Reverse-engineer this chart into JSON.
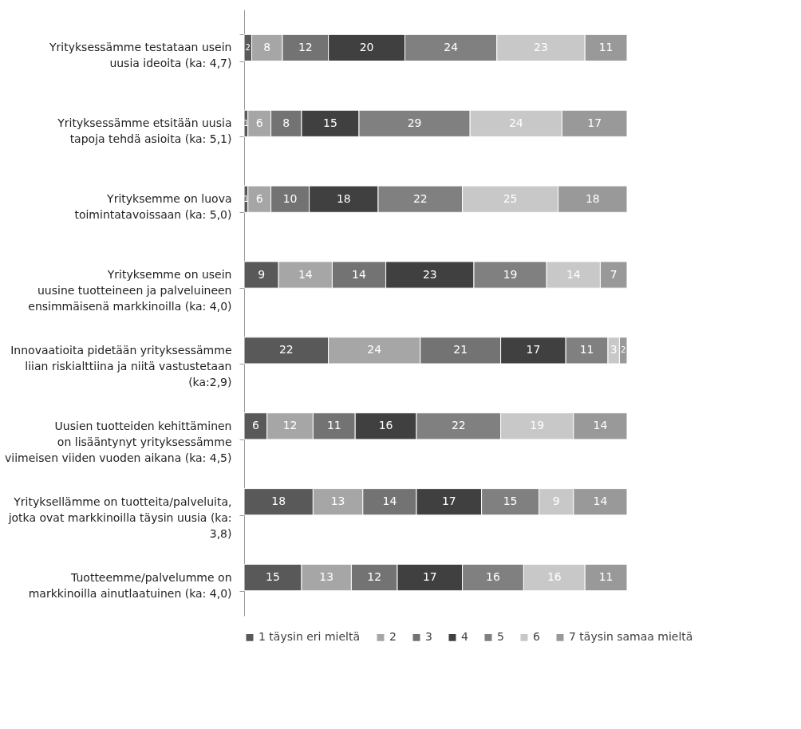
{
  "chart_data": {
    "type": "bar",
    "orientation": "horizontal",
    "stacked": true,
    "data_labels": true,
    "legend": "bottom",
    "grid": false,
    "tick_labels": "y",
    "xlim": [
      0,
      100
    ],
    "categories": [
      "Yrityksessämme testataan usein\nuusia ideoita (ka: 4,7)",
      "Yrityksessämme etsitään uusia\ntapoja tehdä asioita (ka: 5,1)",
      "Yrityksemme on luova\ntoimintatavoissaan (ka: 5,0)",
      "Yrityksemme on usein\nuusine tuotteineen ja palveluineen\nensimmäisenä markkinoilla (ka: 4,0)",
      "Innovaatioita pidetään yrityksessämme\nliian riskialttiina ja niitä vastustetaan\n(ka:2,9)",
      "Uusien tuotteiden kehittäminen\non lisääntynyt yrityksessämme\nviimeisen viiden vuoden aikana (ka: 4,5)",
      "Yrityksellämme on tuotteita/palveluita,\njotka ovat markkinoilla täysin uusia (ka:\n3,8)",
      "Tuotteemme/palvelumme on\nmarkkinoilla ainutlaatuinen (ka: 4,0)"
    ],
    "series": [
      {
        "name": "1 täysin eri mieltä",
        "color": "#595959",
        "values": [
          2,
          1,
          1,
          9,
          22,
          6,
          18,
          15
        ]
      },
      {
        "name": "2",
        "color": "#a6a6a6",
        "values": [
          8,
          6,
          6,
          14,
          24,
          12,
          13,
          13
        ]
      },
      {
        "name": "3",
        "color": "#737373",
        "values": [
          12,
          8,
          10,
          14,
          21,
          11,
          14,
          12
        ]
      },
      {
        "name": "4",
        "color": "#404040",
        "values": [
          20,
          15,
          18,
          23,
          17,
          16,
          17,
          17
        ]
      },
      {
        "name": "5",
        "color": "#808080",
        "values": [
          24,
          29,
          22,
          19,
          11,
          22,
          15,
          16
        ]
      },
      {
        "name": "6",
        "color": "#c8c8c8",
        "values": [
          23,
          24,
          25,
          14,
          3,
          19,
          9,
          16
        ]
      },
      {
        "name": "7 täysin samaa mieltä",
        "color": "#999999",
        "values": [
          11,
          17,
          18,
          7,
          2,
          14,
          14,
          11
        ]
      }
    ]
  }
}
